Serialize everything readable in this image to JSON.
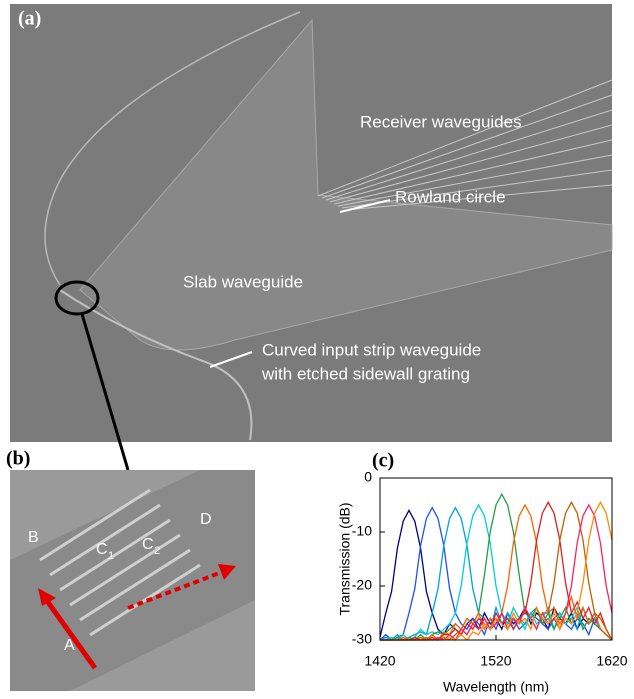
{
  "panel_a": {
    "label": "(a)",
    "receiver": "Receiver waveguides",
    "rowland": "Rowland circle",
    "slab": "Slab waveguide",
    "input_lines": [
      "Curved input strip waveguide",
      "with etched sidewall grating"
    ]
  },
  "panel_b": {
    "label": "(b)",
    "A": "A",
    "B": "B",
    "C1": {
      "main": "C",
      "sub": "1"
    },
    "C2": {
      "main": "C",
      "sub": "2"
    },
    "D": "D"
  },
  "chart_data": {
    "type": "line",
    "panel_label": "(c)",
    "xlabel": "Wavelength (nm)",
    "ylabel": "Transmission (dB)",
    "xlim": [
      1420,
      1620
    ],
    "ylim": [
      -30,
      0
    ],
    "xticks": [
      1420,
      1520,
      1620
    ],
    "yticks": [
      -30,
      -20,
      -10,
      0
    ],
    "x": [
      1420,
      1425,
      1430,
      1435,
      1440,
      1445,
      1450,
      1455,
      1460,
      1465,
      1470,
      1475,
      1480,
      1485,
      1490,
      1495,
      1500,
      1505,
      1510,
      1515,
      1520,
      1525,
      1530,
      1535,
      1540,
      1545,
      1550,
      1555,
      1560,
      1565,
      1570,
      1575,
      1580,
      1585,
      1590,
      1595,
      1600,
      1605,
      1610,
      1615,
      1620
    ],
    "series": [
      {
        "color": "#000080",
        "values": [
          -29.5,
          -25,
          -21,
          -13,
          -8,
          -6,
          -8,
          -13,
          -21,
          -25,
          -28,
          -29,
          -27,
          -28,
          -29,
          -27,
          -26,
          -28,
          -25,
          -27,
          -26,
          -28,
          -25,
          -27,
          -26,
          -24,
          -27,
          -25,
          -26,
          -28,
          -24,
          -26,
          -27,
          -25,
          -28,
          -26,
          -27,
          -25,
          -28,
          -29,
          -30
        ]
      },
      {
        "color": "#1e50ff",
        "values": [
          -30,
          -29,
          -30,
          -29.5,
          -29,
          -25,
          -20.5,
          -12.5,
          -7.5,
          -5.5,
          -7.5,
          -12.5,
          -20.5,
          -25,
          -27,
          -28,
          -26,
          -27,
          -29,
          -26,
          -28,
          -25,
          -27,
          -26,
          -28,
          -27,
          -25,
          -26,
          -27,
          -28,
          -26,
          -25,
          -27,
          -28,
          -26,
          -27,
          -29,
          -26,
          -28,
          -29,
          -30
        ]
      },
      {
        "color": "#00a0e0",
        "values": [
          -30,
          -29.5,
          -30,
          -29,
          -30,
          -29.5,
          -29,
          -28.5,
          -29,
          -25,
          -20.5,
          -12.5,
          -7.5,
          -5.5,
          -7.5,
          -12.5,
          -20.5,
          -25,
          -26,
          -28,
          -24,
          -27,
          -25,
          -28,
          -26,
          -27,
          -25,
          -24,
          -27,
          -26,
          -28,
          -25,
          -27,
          -26,
          -28,
          -24,
          -27,
          -26,
          -28,
          -29,
          -30
        ]
      },
      {
        "color": "#00d0d0",
        "values": [
          -30,
          -30,
          -29.5,
          -30,
          -29,
          -30,
          -29.5,
          -28,
          -29,
          -28.5,
          -29,
          -28,
          -27,
          -25,
          -20,
          -12,
          -7,
          -5,
          -7,
          -12,
          -20,
          -25,
          -27,
          -24,
          -26,
          -28,
          -25,
          -27,
          -26,
          -24,
          -28,
          -25,
          -27,
          -26,
          -24,
          -28,
          -26,
          -27,
          -28,
          -29,
          -30
        ]
      },
      {
        "color": "#20a040",
        "values": [
          -30,
          -30,
          -30,
          -29.5,
          -30,
          -29.5,
          -30,
          -29,
          -30,
          -29,
          -28.5,
          -29,
          -28,
          -27,
          -28,
          -26,
          -27,
          -25,
          -18,
          -10,
          -5,
          -3,
          -5,
          -10,
          -18,
          -25,
          -26,
          -24,
          -27,
          -25,
          -28,
          -26,
          -24,
          -27,
          -25,
          -28,
          -26,
          -27,
          -28,
          -29,
          -30
        ]
      },
      {
        "color": "#ff6000",
        "values": [
          -30,
          -30,
          -30,
          -30,
          -29.5,
          -30,
          -30,
          -29.5,
          -30,
          -29,
          -30,
          -28.5,
          -29,
          -27,
          -28,
          -26,
          -27,
          -25,
          -28,
          -26,
          -27,
          -25,
          -20,
          -12,
          -7,
          -5,
          -7,
          -12,
          -20,
          -25,
          -24,
          -27,
          -25,
          -22,
          -26,
          -24,
          -27,
          -25,
          -28,
          -29,
          -30
        ]
      },
      {
        "color": "#e02020",
        "values": [
          -30,
          -30,
          -30,
          -30,
          -30,
          -30,
          -29.5,
          -30,
          -30,
          -29.5,
          -30,
          -29,
          -29,
          -28,
          -29,
          -27,
          -28,
          -26,
          -27,
          -28,
          -25,
          -27,
          -26,
          -28,
          -26,
          -25,
          -19.5,
          -11.5,
          -6.5,
          -4.5,
          -6.5,
          -11.5,
          -19.5,
          -25,
          -23,
          -26,
          -24,
          -27,
          -25,
          -28,
          -30
        ]
      },
      {
        "color": "#c06000",
        "values": [
          -30,
          -30,
          -30,
          -30,
          -30,
          -30,
          -30,
          -30,
          -29.5,
          -30,
          -30,
          -29.5,
          -30,
          -29,
          -28,
          -29,
          -27,
          -28,
          -26,
          -28,
          -27,
          -25,
          -28,
          -26,
          -27,
          -24,
          -26,
          -28,
          -25,
          -25,
          -19.5,
          -11.5,
          -6.5,
          -4.5,
          -6.5,
          -11.5,
          -19.5,
          -25,
          -26,
          -28,
          -30
        ]
      },
      {
        "color": "#ff2060",
        "values": [
          -30,
          -30,
          -30,
          -30,
          -30,
          -30,
          -30,
          -30,
          -30,
          -30,
          -29.5,
          -30,
          -29,
          -30,
          -28,
          -29,
          -27,
          -28,
          -26,
          -28,
          -27,
          -25,
          -28,
          -26,
          -27,
          -24,
          -26,
          -28,
          -25,
          -27,
          -26,
          -28,
          -25,
          -20,
          -12,
          -7,
          -5,
          -7,
          -12,
          -20,
          -25
        ]
      },
      {
        "color": "#ff8c00",
        "values": [
          -30,
          -30,
          -30,
          -30,
          -30,
          -30,
          -30,
          -30,
          -30,
          -30,
          -30,
          -30,
          -29.5,
          -30,
          -29,
          -30,
          -28.5,
          -29,
          -27,
          -28,
          -26,
          -27,
          -28,
          -25,
          -27,
          -26,
          -28,
          -24,
          -26,
          -27,
          -25,
          -28,
          -26,
          -27,
          -25,
          -19.5,
          -11.5,
          -6.5,
          -4.5,
          -6.5,
          -11.5
        ]
      }
    ]
  }
}
